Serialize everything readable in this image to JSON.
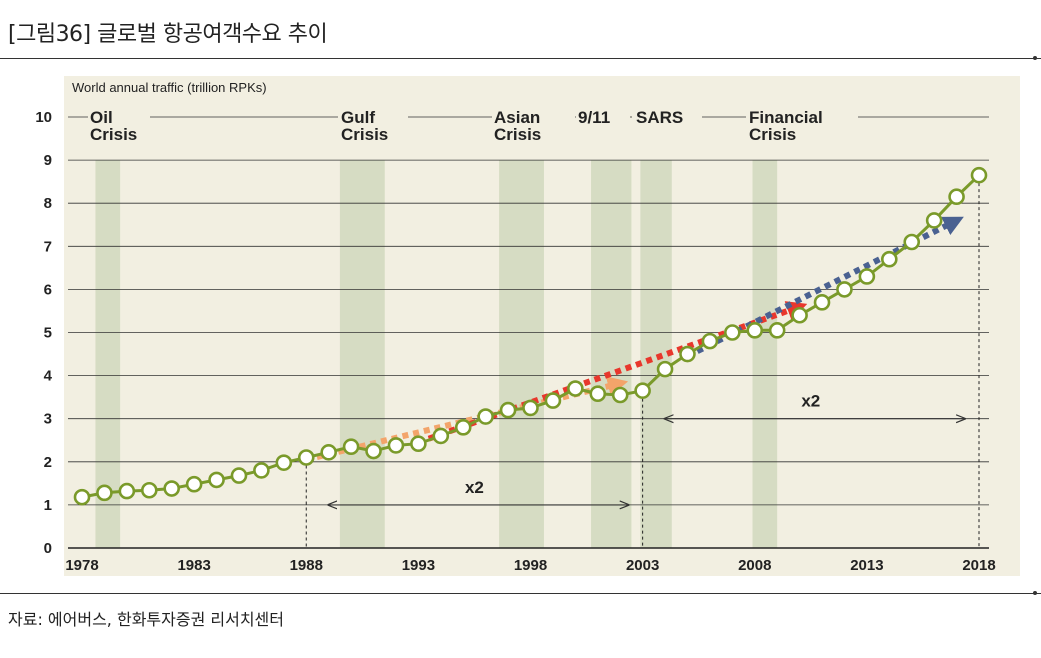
{
  "figure": {
    "title": "[그림36]  글로벌 항공여객수요 추이",
    "source": "자료: 에어버스, 한화투자증권 리서치센터"
  },
  "colors": {
    "panel_bg": "#f2efe1",
    "band": "#d6dcc3",
    "series_line": "#7a9a2a",
    "marker_fill": "#ffffff",
    "trend_orange": "#f3a46a",
    "trend_red": "#e8372c",
    "trend_blue": "#4a6191",
    "grid": "#333333"
  },
  "chart_data": {
    "type": "line",
    "ylabel": "World annual traffic (trillion RPKs)",
    "ylim": [
      0,
      10
    ],
    "xlim": [
      1978,
      2018
    ],
    "yticks": [
      "0",
      "1",
      "2",
      "3",
      "4",
      "5",
      "6",
      "7",
      "8",
      "9",
      "10"
    ],
    "xticks": [
      "1978",
      "1983",
      "1988",
      "1993",
      "1998",
      "2003",
      "2008",
      "2013",
      "2018"
    ],
    "grid": "horizontal",
    "series": [
      {
        "x": [
          1978,
          1979,
          1980,
          1981,
          1982,
          1983,
          1984,
          1985,
          1986,
          1987,
          1988,
          1989,
          1990,
          1991,
          1992,
          1993,
          1994,
          1995,
          1996,
          1997,
          1998,
          1999,
          2000,
          2001,
          2002,
          2003,
          2004,
          2005,
          2006,
          2007,
          2008,
          2009,
          2010,
          2011,
          2012,
          2013,
          2014,
          2015,
          2016,
          2017,
          2018
        ],
        "y": [
          1.18,
          1.28,
          1.32,
          1.34,
          1.38,
          1.48,
          1.58,
          1.68,
          1.8,
          1.98,
          2.1,
          2.22,
          2.35,
          2.25,
          2.38,
          2.42,
          2.6,
          2.8,
          3.05,
          3.2,
          3.25,
          3.42,
          3.7,
          3.58,
          3.55,
          3.65,
          4.15,
          4.5,
          4.8,
          5.0,
          5.05,
          5.05,
          5.4,
          5.7,
          6.0,
          6.3,
          6.7,
          7.1,
          7.6,
          8.15,
          8.65
        ]
      }
    ],
    "shaded_periods": [
      {
        "label": [
          "Oil",
          "Crisis"
        ],
        "start": 1978.6,
        "end": 1979.7
      },
      {
        "label": [
          "Gulf",
          "Crisis"
        ],
        "start": 1989.5,
        "end": 1991.5
      },
      {
        "label": [
          "Asian",
          "Crisis"
        ],
        "start": 1996.6,
        "end": 1998.6
      },
      {
        "label": [
          "9/11"
        ],
        "start": 2000.7,
        "end": 2002.5
      },
      {
        "label": [
          "SARS"
        ],
        "start": 2002.9,
        "end": 2004.3
      },
      {
        "label": [
          "Financial",
          "Crisis"
        ],
        "start": 2007.9,
        "end": 2009.0
      }
    ],
    "annotations": [
      {
        "text": "x2",
        "x_from": 1988,
        "x_to": 2003,
        "y": 1.0
      },
      {
        "text": "x2",
        "x_from": 2003,
        "x_to": 2018,
        "y": 3.0
      }
    ],
    "trend_arrows": [
      {
        "color_key": "trend_orange",
        "from": [
          1988,
          2.05
        ],
        "to": [
          2002,
          3.82
        ]
      },
      {
        "color_key": "trend_red",
        "from": [
          1993,
          2.45
        ],
        "to": [
          2010,
          5.6
        ]
      },
      {
        "color_key": "trend_blue",
        "from": [
          2005,
          4.45
        ],
        "to": [
          2017,
          7.6
        ]
      }
    ]
  }
}
